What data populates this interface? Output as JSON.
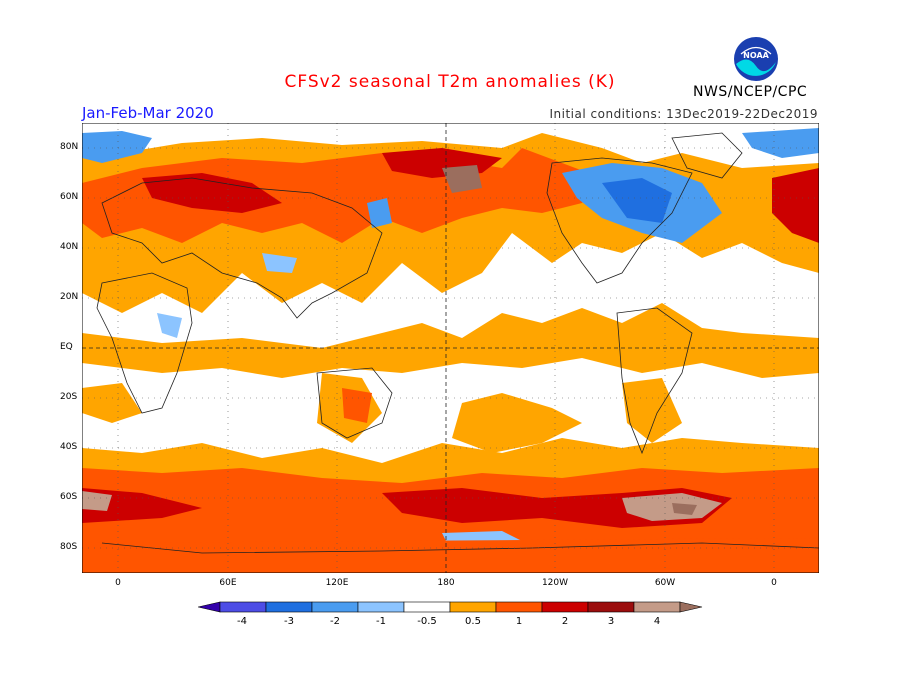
{
  "title": "CFSv2 seasonal T2m anomalies (K)",
  "season": "Jan-Feb-Mar 2020",
  "initial_conditions": "Initial conditions: 13Dec2019-22Dec2019",
  "agency": "NWS/NCEP/CPC",
  "logo_text": "NOAA",
  "lat_labels": [
    "80N",
    "60N",
    "40N",
    "20N",
    "EQ",
    "20S",
    "40S",
    "60S",
    "80S"
  ],
  "lon_labels": [
    "0",
    "60E",
    "120E",
    "180",
    "120W",
    "60W",
    "0"
  ],
  "colorbar": {
    "labels": [
      "-4",
      "-3",
      "-2",
      "-1",
      "-0.5",
      "0.5",
      "1",
      "2",
      "3",
      "4"
    ],
    "colors": [
      "#3300aa",
      "#4d4de6",
      "#1f6fe0",
      "#4a9cf0",
      "#8cc4ff",
      "#ffffff",
      "#ffa500",
      "#ff5500",
      "#cc0000",
      "#9b0d0d",
      "#c49b88",
      "#9b6e5e"
    ]
  }
}
